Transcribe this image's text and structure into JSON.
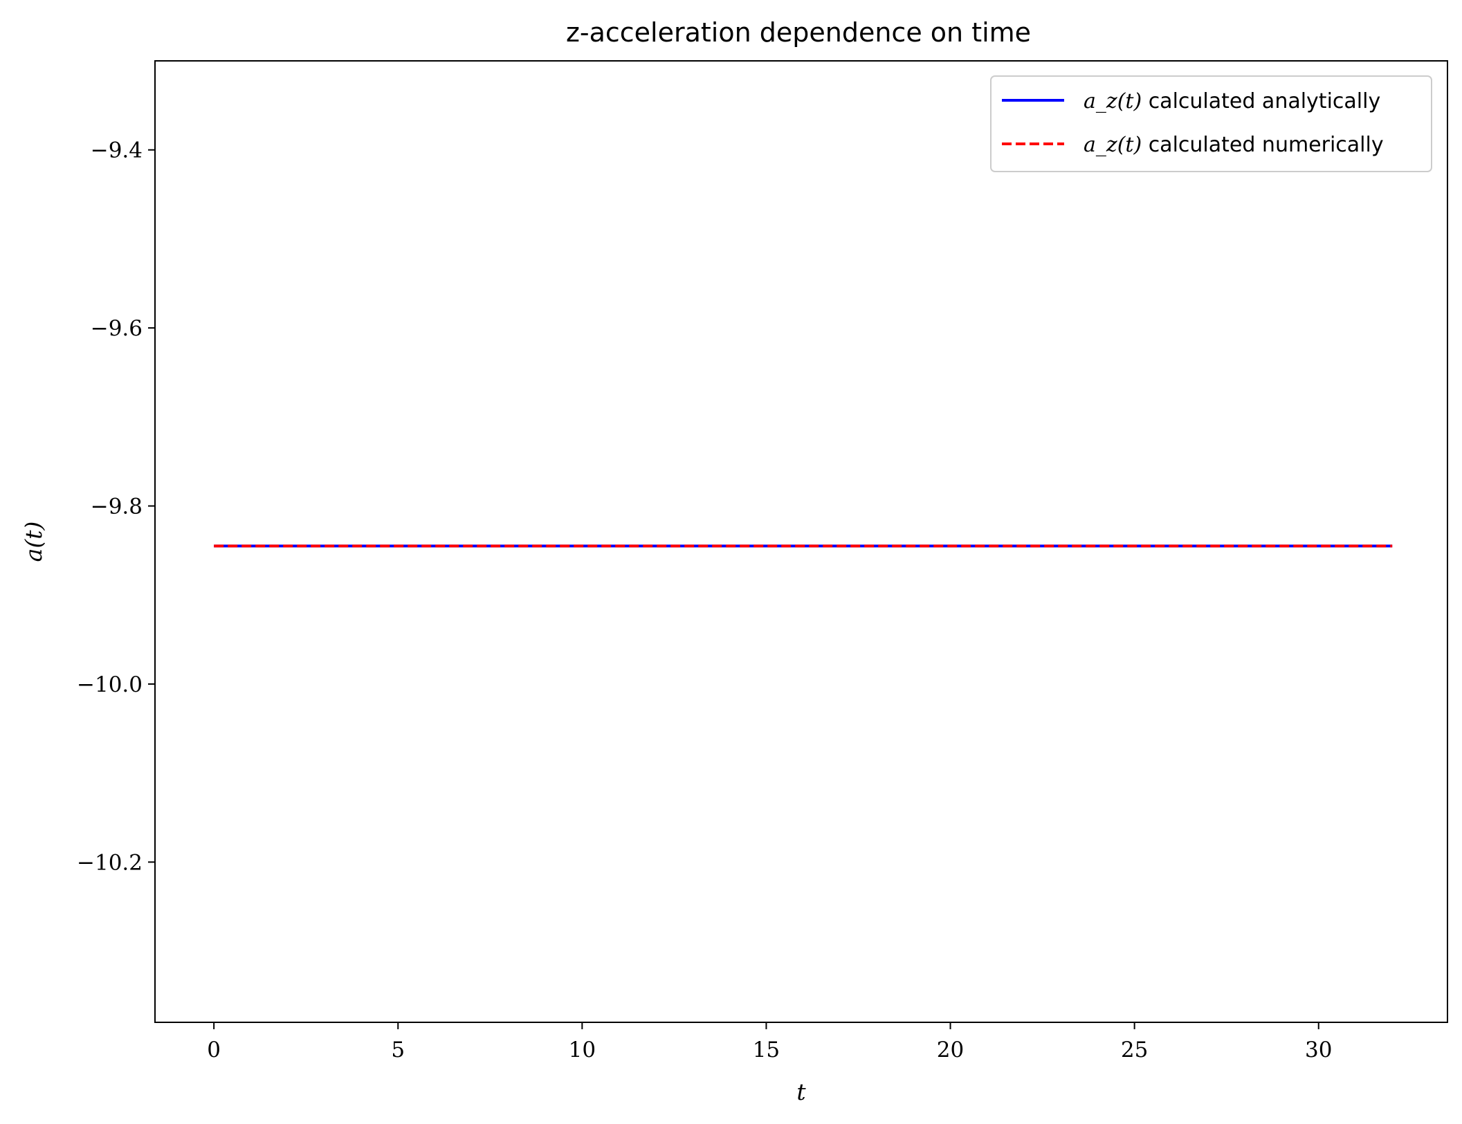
{
  "chart_data": {
    "type": "line",
    "title": "z-acceleration dependence on time",
    "xlabel": "t",
    "ylabel": "a(t)",
    "xlim": [
      -1.6,
      33.5
    ],
    "ylim": [
      -10.38,
      -9.3
    ],
    "xticks": [
      0,
      5,
      10,
      15,
      20,
      25,
      30
    ],
    "yticks": [
      -9.4,
      -9.6,
      -9.8,
      -10.0,
      -10.2
    ],
    "xtick_labels": [
      "0",
      "5",
      "10",
      "15",
      "20",
      "25",
      "30"
    ],
    "ytick_labels": [
      "−9.4",
      "−9.6",
      "−9.8",
      "−10.0",
      "−10.2"
    ],
    "grid": false,
    "legend_position": "top-right",
    "series": [
      {
        "name_math": "a_z(t)",
        "name_text": " calculated analytically",
        "color": "#0000ff",
        "style": "solid",
        "x": [
          0,
          32
        ],
        "y": [
          -9.845,
          -9.845
        ]
      },
      {
        "name_math": "a_z(t)",
        "name_text": " calculated numerically",
        "color": "#ff0000",
        "style": "dashed",
        "x": [
          0,
          32
        ],
        "y": [
          -9.845,
          -9.845
        ]
      }
    ]
  }
}
